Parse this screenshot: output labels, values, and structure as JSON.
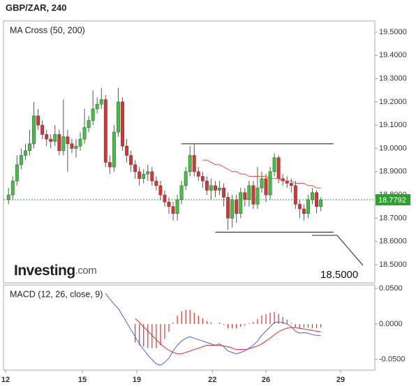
{
  "chart_data": {
    "type": "candlestick",
    "title": "GBP/ZAR, 240",
    "indicator": "MA Cross (50, 200)",
    "logo": {
      "brand": "Investing",
      "suffix": ".com"
    },
    "xlim": [
      -1.2,
      86.8
    ],
    "xticks": [
      {
        "value": -0.7,
        "label": "12"
      },
      {
        "value": 17.5,
        "label": "15"
      },
      {
        "value": 30.4,
        "label": "19"
      },
      {
        "value": 48.3,
        "label": "22"
      },
      {
        "value": 61,
        "label": "26"
      },
      {
        "value": 78.7,
        "label": "29"
      }
    ],
    "ylim": [
      18.422,
      19.548
    ],
    "yticks": [
      {
        "value": 19.5,
        "label": "19.5000"
      },
      {
        "value": 19.4,
        "label": "19.4000"
      },
      {
        "value": 19.3,
        "label": "19.3000"
      },
      {
        "value": 19.2,
        "label": "19.2000"
      },
      {
        "value": 19.1,
        "label": "19.1000"
      },
      {
        "value": 19.0,
        "label": "19.0000"
      },
      {
        "value": 18.9,
        "label": "18.9000"
      },
      {
        "value": 18.8,
        "label": "18.8000"
      },
      {
        "value": 18.7,
        "label": "18.7000"
      },
      {
        "value": 18.6,
        "label": "18.6000"
      },
      {
        "value": 18.5,
        "label": "18.5000"
      }
    ],
    "up_color": "#3cc43c",
    "down_color": "#e0302f",
    "last_color": "#2fa02f",
    "open": [
      18.78,
      18.8,
      18.86,
      18.93,
      18.97,
      18.99,
      19.02,
      19.14,
      19.1,
      19.06,
      19.04,
      19.03,
      19.06,
      18.99,
      19.05,
      19.02,
      19.0,
      19.01,
      19.04,
      19.09,
      19.12,
      19.17,
      19.19,
      19.21,
      18.94,
      18.92,
      19.07,
      19.2,
      19.01,
      18.97,
      18.93,
      18.9,
      18.87,
      18.89,
      18.9,
      18.86,
      18.84,
      18.8,
      18.77,
      18.75,
      18.72,
      18.78,
      18.84,
      18.9,
      18.97,
      18.9,
      18.88,
      18.86,
      18.82,
      18.84,
      18.82,
      18.83,
      18.79,
      18.7,
      18.78,
      18.72,
      18.81,
      18.78,
      18.84,
      18.76,
      18.83,
      18.87,
      18.8,
      18.9,
      18.96,
      18.87,
      18.86,
      18.85,
      18.84,
      18.76,
      18.74,
      18.72,
      18.78,
      18.81,
      18.75
    ],
    "high": [
      18.83,
      18.88,
      18.97,
      19.0,
      19.02,
      19.08,
      19.2,
      19.17,
      19.12,
      19.08,
      19.06,
      19.1,
      19.08,
      19.21,
      19.08,
      19.04,
      19.04,
      19.07,
      19.17,
      19.14,
      19.25,
      19.22,
      19.26,
      19.23,
      18.97,
      19.1,
      19.26,
      19.22,
      19.04,
      18.99,
      18.95,
      18.92,
      18.91,
      18.93,
      18.92,
      18.88,
      18.86,
      18.82,
      18.79,
      18.77,
      18.8,
      18.86,
      18.92,
      19.01,
      19.02,
      18.92,
      18.9,
      18.88,
      18.87,
      18.86,
      18.86,
      18.85,
      18.81,
      18.8,
      18.8,
      18.83,
      18.83,
      18.86,
      18.86,
      18.92,
      18.9,
      18.89,
      18.92,
      18.98,
      18.97,
      18.89,
      18.88,
      18.87,
      18.86,
      18.78,
      18.76,
      18.8,
      18.83,
      18.82,
      18.79
    ],
    "low": [
      18.76,
      18.78,
      18.84,
      18.91,
      18.95,
      18.97,
      19.0,
      19.08,
      19.04,
      19.01,
      19.0,
      19.01,
      18.97,
      18.97,
      18.9,
      18.98,
      18.96,
      18.99,
      19.02,
      19.07,
      19.1,
      19.15,
      19.17,
      18.92,
      18.89,
      18.9,
      19.05,
      18.99,
      18.94,
      18.9,
      18.87,
      18.84,
      18.85,
      18.86,
      18.84,
      18.82,
      18.78,
      18.75,
      18.72,
      18.69,
      18.69,
      18.76,
      18.82,
      18.88,
      18.88,
      18.86,
      18.83,
      18.8,
      18.78,
      18.79,
      18.8,
      18.75,
      18.65,
      18.66,
      18.68,
      18.7,
      18.75,
      18.75,
      18.74,
      18.74,
      18.81,
      18.77,
      18.78,
      18.88,
      18.85,
      18.84,
      18.83,
      18.81,
      18.74,
      18.7,
      18.69,
      18.7,
      18.76,
      18.72,
      18.73
    ],
    "close": [
      18.8,
      18.86,
      18.93,
      18.97,
      18.99,
      19.02,
      19.14,
      19.1,
      19.06,
      19.04,
      19.03,
      19.06,
      18.99,
      19.05,
      19.02,
      19.0,
      19.01,
      19.04,
      19.09,
      19.12,
      19.17,
      19.19,
      19.21,
      18.94,
      18.92,
      19.07,
      19.2,
      19.01,
      18.97,
      18.93,
      18.9,
      18.87,
      18.89,
      18.9,
      18.86,
      18.84,
      18.8,
      18.77,
      18.75,
      18.72,
      18.78,
      18.84,
      18.9,
      18.97,
      18.9,
      18.88,
      18.86,
      18.82,
      18.84,
      18.82,
      18.83,
      18.79,
      18.7,
      18.78,
      18.72,
      18.81,
      18.78,
      18.84,
      18.76,
      18.83,
      18.87,
      18.8,
      18.9,
      18.96,
      18.87,
      18.86,
      18.85,
      18.84,
      18.76,
      18.74,
      18.72,
      18.78,
      18.81,
      18.75,
      18.7792
    ],
    "ma": {
      "color": "#e8504a",
      "values": [
        null,
        null,
        null,
        null,
        null,
        null,
        null,
        null,
        null,
        null,
        null,
        null,
        null,
        null,
        null,
        null,
        null,
        null,
        null,
        null,
        null,
        null,
        null,
        null,
        null,
        null,
        null,
        null,
        null,
        null,
        null,
        null,
        null,
        null,
        null,
        null,
        null,
        null,
        null,
        null,
        null,
        null,
        null,
        null,
        null,
        null,
        18.95,
        18.95,
        18.94,
        18.93,
        18.93,
        18.92,
        18.91,
        18.9,
        18.9,
        18.89,
        18.89,
        18.88,
        18.88,
        18.88,
        18.88,
        18.88,
        18.87,
        18.87,
        18.87,
        18.86,
        18.86,
        18.86,
        18.85,
        18.85,
        18.85,
        18.84,
        18.84,
        18.83,
        18.83
      ]
    },
    "levels": [
      {
        "value": 19.02,
        "from": 41,
        "to": 77
      },
      {
        "value": 18.64,
        "from": 49,
        "to": 77
      }
    ],
    "annotation": "18.5000",
    "macd": {
      "label": "MACD (12, 26, close, 9)",
      "ylim": [
        -0.065,
        0.055
      ],
      "yticks": [
        {
          "value": 0.05,
          "label": "0.0500"
        },
        {
          "value": 0,
          "label": "0.0000"
        },
        {
          "value": -0.05,
          "label": "-0.0500"
        }
      ],
      "macd_line": {
        "color": "#4a5fd8",
        "values": [
          null,
          null,
          null,
          null,
          null,
          null,
          null,
          null,
          null,
          null,
          null,
          null,
          null,
          null,
          null,
          null,
          null,
          null,
          null,
          null,
          null,
          null,
          null,
          0.043,
          0.035,
          0.028,
          0.022,
          0.012,
          0.002,
          -0.008,
          -0.018,
          -0.028,
          -0.036,
          -0.044,
          -0.05,
          -0.056,
          -0.058,
          -0.054,
          -0.048,
          -0.038,
          -0.03,
          -0.024,
          -0.02,
          -0.018,
          -0.02,
          -0.022,
          -0.024,
          -0.026,
          -0.028,
          -0.03,
          -0.028,
          -0.032,
          -0.038,
          -0.04,
          -0.042,
          -0.04,
          -0.038,
          -0.034,
          -0.03,
          -0.024,
          -0.016,
          -0.01,
          -0.004,
          0.002,
          0.003,
          0.002,
          0,
          -0.004,
          -0.01,
          -0.013,
          -0.012,
          -0.013,
          -0.015,
          -0.016,
          -0.016
        ]
      },
      "signal": {
        "color": "#e0302f",
        "values": [
          null,
          null,
          null,
          null,
          null,
          null,
          null,
          null,
          null,
          null,
          null,
          null,
          null,
          null,
          null,
          null,
          null,
          null,
          null,
          null,
          null,
          null,
          null,
          null,
          null,
          null,
          null,
          null,
          null,
          null,
          0.008,
          0.002,
          -0.004,
          -0.01,
          -0.016,
          -0.022,
          -0.028,
          -0.033,
          -0.037,
          -0.04,
          -0.042,
          -0.042,
          -0.04,
          -0.038,
          -0.036,
          -0.034,
          -0.032,
          -0.03,
          -0.03,
          -0.03,
          -0.03,
          -0.031,
          -0.032,
          -0.034,
          -0.036,
          -0.036,
          -0.036,
          -0.035,
          -0.033,
          -0.031,
          -0.028,
          -0.024,
          -0.02,
          -0.015,
          -0.011,
          -0.008,
          -0.006,
          -0.005,
          -0.005,
          -0.006,
          -0.007,
          -0.008,
          -0.009,
          -0.01,
          -0.011
        ]
      },
      "histogram": {
        "color": "#e0302f",
        "values": [
          null,
          null,
          null,
          null,
          null,
          null,
          null,
          null,
          null,
          null,
          null,
          null,
          null,
          null,
          null,
          null,
          null,
          null,
          null,
          null,
          null,
          null,
          null,
          null,
          null,
          null,
          null,
          null,
          null,
          null,
          -0.026,
          -0.03,
          -0.032,
          -0.034,
          -0.034,
          -0.034,
          -0.03,
          -0.021,
          -0.011,
          0.002,
          0.012,
          0.018,
          0.02,
          0.02,
          0.016,
          0.012,
          0.008,
          0.004,
          0.002,
          0,
          0.002,
          -0.001,
          -0.006,
          -0.006,
          -0.006,
          -0.004,
          -0.002,
          0.001,
          0.003,
          0.007,
          0.012,
          0.014,
          0.016,
          0.017,
          0.014,
          0.01,
          0.006,
          0.001,
          -0.005,
          -0.007,
          -0.005,
          -0.005,
          -0.006,
          -0.006,
          -0.005
        ]
      }
    }
  }
}
